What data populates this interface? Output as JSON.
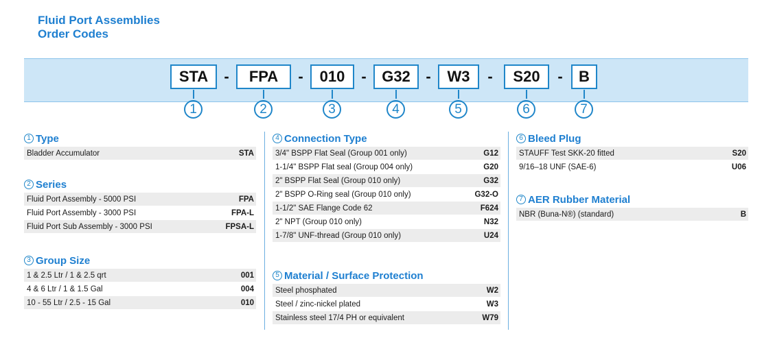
{
  "header": {
    "title_line1": "Fluid Port Assemblies",
    "title_line2": "Order Codes"
  },
  "order_code": {
    "segments": [
      "STA",
      "FPA",
      "010",
      "G32",
      "W3",
      "S20",
      "B"
    ],
    "separator": "-",
    "numbers": [
      "1",
      "2",
      "3",
      "4",
      "5",
      "6",
      "7"
    ]
  },
  "sections": [
    {
      "num": "1",
      "title": "Type",
      "rows": [
        {
          "label": "Bladder Accumulator",
          "code": "STA"
        }
      ]
    },
    {
      "num": "2",
      "title": "Series",
      "rows": [
        {
          "label": "Fluid Port Assembly - 5000 PSI",
          "code": "FPA"
        },
        {
          "label": "Fluid Port Assembly - 3000 PSI",
          "code": "FPA-L"
        },
        {
          "label": "Fluid Port Sub Assembly - 3000 PSI",
          "code": "FPSA-L"
        }
      ]
    },
    {
      "num": "3",
      "title": "Group Size",
      "rows": [
        {
          "label": "1 & 2.5 Ltr / 1 & 2.5 qrt",
          "code": "001"
        },
        {
          "label": "4 & 6 Ltr  / 1 & 1.5 Gal",
          "code": "004"
        },
        {
          "label": "10 - 55 Ltr / 2.5 - 15 Gal",
          "code": "010"
        }
      ]
    },
    {
      "num": "4",
      "title": "Connection Type",
      "rows": [
        {
          "label": "3/4\" BSPP Flat Seal (Group 001 only)",
          "code": "G12"
        },
        {
          "label": "1-1/4\" BSPP Flat seal (Group 004 only)",
          "code": "G20"
        },
        {
          "label": "2\" BSPP Flat Seal (Group 010 only)",
          "code": "G32"
        },
        {
          "label": "2\" BSPP O-Ring seal (Group 010 only)",
          "code": "G32-O"
        },
        {
          "label": "1-1/2\" SAE Flange Code 62",
          "code": "F624"
        },
        {
          "label": "2\" NPT (Group 010 only)",
          "code": "N32"
        },
        {
          "label": "1-7/8\" UNF-thread (Group 010 only)",
          "code": "U24"
        }
      ]
    },
    {
      "num": "5",
      "title": "Material / Surface Protection",
      "rows": [
        {
          "label": "Steel phosphated",
          "code": "W2"
        },
        {
          "label": "Steel / zinc-nickel plated",
          "code": "W3"
        },
        {
          "label": "Stainless steel 17/4 PH or equivalent",
          "code": "W79"
        }
      ]
    },
    {
      "num": "6",
      "title": "Bleed Plug",
      "rows": [
        {
          "label": "STAUFF Test SKK-20 fitted",
          "code": "S20"
        },
        {
          "label": "9/16–18 UNF (SAE-6)",
          "code": "U06"
        }
      ]
    },
    {
      "num": "7",
      "title": "AER Rubber Material",
      "rows": [
        {
          "label": "NBR (Buna-N®) (standard)",
          "code": "B"
        }
      ]
    }
  ]
}
